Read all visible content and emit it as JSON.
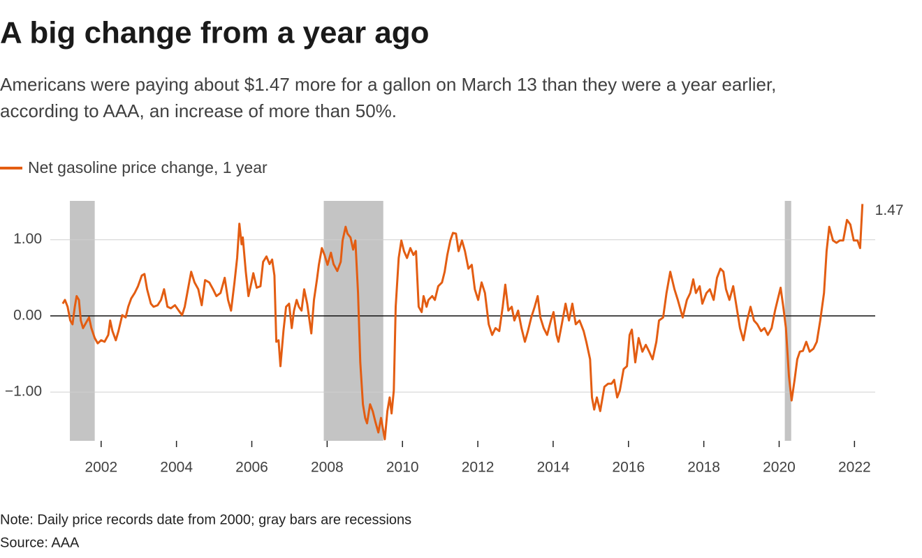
{
  "chart_data": {
    "type": "line",
    "title": "A big change from a year ago",
    "subtitle": [
      "Americans were paying about $1.47 more for a gallon on March 13 than they were a year earlier,",
      "according to AAA, an increase of more than 50%."
    ],
    "note": "Note: Daily price records date from 2000; gray bars are recessions",
    "source": "Source: AAA",
    "xlim": [
      2000.65,
      2022.55
    ],
    "ylim": [
      -1.64,
      1.51
    ],
    "xticks": [
      2002,
      2004,
      2006,
      2008,
      2010,
      2012,
      2014,
      2016,
      2018,
      2020,
      2022
    ],
    "yticks": [
      {
        "value": -1,
        "label": "−1.00"
      },
      {
        "value": 0,
        "label": "0.00"
      },
      {
        "value": 1,
        "label": "1.00"
      }
    ],
    "grid": true,
    "recession_color": "#c4c4c4",
    "recessions": [
      [
        2001.17,
        2001.83
      ],
      [
        2007.91,
        2009.49
      ],
      [
        2020.15,
        2020.32
      ]
    ],
    "series": [
      {
        "name": "Net gasoline price change, 1 year",
        "color": "#e35d12",
        "x": [
          2000.98,
          2001.04,
          2001.11,
          2001.18,
          2001.24,
          2001.3,
          2001.35,
          2001.41,
          2001.46,
          2001.52,
          2001.61,
          2001.68,
          2001.74,
          2001.83,
          2001.91,
          2002.0,
          2002.09,
          2002.19,
          2002.24,
          2002.3,
          2002.39,
          2002.46,
          2002.56,
          2002.65,
          2002.72,
          2002.8,
          2002.89,
          2002.98,
          2003.08,
          2003.15,
          2003.22,
          2003.32,
          2003.39,
          2003.5,
          2003.59,
          2003.67,
          2003.76,
          2003.85,
          2003.96,
          2004.06,
          2004.15,
          2004.22,
          2004.32,
          2004.39,
          2004.48,
          2004.58,
          2004.67,
          2004.76,
          2004.87,
          2004.97,
          2005.06,
          2005.17,
          2005.28,
          2005.37,
          2005.45,
          2005.54,
          2005.61,
          2005.67,
          2005.73,
          2005.76,
          2005.84,
          2005.91,
          2005.99,
          2006.04,
          2006.13,
          2006.23,
          2006.3,
          2006.39,
          2006.47,
          2006.54,
          2006.6,
          2006.65,
          2006.71,
          2006.76,
          2006.84,
          2006.91,
          2006.99,
          2007.06,
          2007.12,
          2007.19,
          2007.25,
          2007.32,
          2007.39,
          2007.47,
          2007.52,
          2007.58,
          2007.65,
          2007.73,
          2007.78,
          2007.86,
          2007.93,
          2008.01,
          2008.1,
          2008.17,
          2008.27,
          2008.36,
          2008.41,
          2008.49,
          2008.54,
          2008.62,
          2008.69,
          2008.75,
          2008.82,
          2008.88,
          2008.95,
          2009.01,
          2009.06,
          2009.14,
          2009.21,
          2009.28,
          2009.36,
          2009.43,
          2009.53,
          2009.6,
          2009.66,
          2009.71,
          2009.77,
          2009.82,
          2009.9,
          2009.97,
          2010.04,
          2010.12,
          2010.21,
          2010.29,
          2010.36,
          2010.43,
          2010.51,
          2010.56,
          2010.64,
          2010.69,
          2010.79,
          2010.86,
          2010.95,
          2011.05,
          2011.12,
          2011.19,
          2011.27,
          2011.34,
          2011.42,
          2011.49,
          2011.58,
          2011.66,
          2011.75,
          2011.84,
          2011.92,
          2012.01,
          2012.1,
          2012.19,
          2012.29,
          2012.38,
          2012.47,
          2012.57,
          2012.66,
          2012.73,
          2012.81,
          2012.9,
          2012.97,
          2013.07,
          2013.16,
          2013.25,
          2013.33,
          2013.42,
          2013.51,
          2013.59,
          2013.66,
          2013.75,
          2013.84,
          2013.94,
          2014.01,
          2014.09,
          2014.14,
          2014.23,
          2014.33,
          2014.42,
          2014.51,
          2014.6,
          2014.7,
          2014.81,
          2014.88,
          2014.98,
          2015.03,
          2015.09,
          2015.16,
          2015.25,
          2015.36,
          2015.46,
          2015.55,
          2015.62,
          2015.7,
          2015.77,
          2015.87,
          2015.96,
          2016.03,
          2016.09,
          2016.18,
          2016.27,
          2016.37,
          2016.46,
          2016.55,
          2016.64,
          2016.74,
          2016.81,
          2016.92,
          2017.01,
          2017.11,
          2017.22,
          2017.31,
          2017.44,
          2017.55,
          2017.64,
          2017.72,
          2017.79,
          2017.89,
          2017.96,
          2018.07,
          2018.16,
          2018.26,
          2018.35,
          2018.44,
          2018.52,
          2018.59,
          2018.68,
          2018.78,
          2018.87,
          2018.96,
          2019.05,
          2019.15,
          2019.24,
          2019.33,
          2019.42,
          2019.52,
          2019.61,
          2019.7,
          2019.8,
          2019.89,
          2019.96,
          2020.04,
          2020.11,
          2020.18,
          2020.26,
          2020.33,
          2020.41,
          2020.48,
          2020.55,
          2020.63,
          2020.72,
          2020.81,
          2020.91,
          2021.0,
          2021.09,
          2021.19,
          2021.26,
          2021.33,
          2021.43,
          2021.52,
          2021.61,
          2021.7,
          2021.8,
          2021.89,
          2021.98,
          2022.08,
          2022.15,
          2022.21
        ],
        "values": [
          0.16,
          0.21,
          0.12,
          -0.06,
          -0.11,
          0.12,
          0.26,
          0.21,
          -0.06,
          -0.16,
          -0.08,
          -0.02,
          -0.16,
          -0.29,
          -0.36,
          -0.32,
          -0.34,
          -0.25,
          -0.06,
          -0.2,
          -0.32,
          -0.2,
          0.01,
          -0.02,
          0.12,
          0.23,
          0.3,
          0.39,
          0.53,
          0.55,
          0.35,
          0.16,
          0.12,
          0.14,
          0.21,
          0.35,
          0.12,
          0.1,
          0.14,
          0.07,
          0.01,
          0.12,
          0.39,
          0.58,
          0.44,
          0.35,
          0.14,
          0.47,
          0.44,
          0.35,
          0.26,
          0.3,
          0.5,
          0.21,
          0.07,
          0.44,
          0.76,
          1.21,
          0.94,
          1.03,
          0.58,
          0.26,
          0.44,
          0.56,
          0.37,
          0.39,
          0.71,
          0.78,
          0.68,
          0.74,
          0.53,
          -0.34,
          -0.32,
          -0.66,
          -0.2,
          0.12,
          0.16,
          -0.16,
          0.07,
          0.21,
          0.12,
          0.07,
          0.35,
          0.16,
          -0.02,
          -0.23,
          0.21,
          0.48,
          0.67,
          0.89,
          0.8,
          0.67,
          0.83,
          0.68,
          0.59,
          0.71,
          0.99,
          1.17,
          1.08,
          1.03,
          0.87,
          0.99,
          0.3,
          -0.61,
          -1.16,
          -1.34,
          -1.41,
          -1.16,
          -1.25,
          -1.39,
          -1.53,
          -1.34,
          -1.62,
          -1.25,
          -1.07,
          -1.28,
          -0.98,
          0.12,
          0.76,
          0.99,
          0.85,
          0.76,
          0.89,
          0.8,
          0.85,
          0.12,
          0.05,
          0.26,
          0.12,
          0.21,
          0.26,
          0.21,
          0.39,
          0.44,
          0.58,
          0.8,
          0.99,
          1.09,
          1.08,
          0.85,
          0.99,
          0.85,
          0.62,
          0.67,
          0.35,
          0.21,
          0.44,
          0.3,
          -0.11,
          -0.25,
          -0.16,
          -0.2,
          0.12,
          0.41,
          0.07,
          0.12,
          -0.06,
          0.07,
          -0.16,
          -0.34,
          -0.2,
          -0.02,
          0.12,
          0.26,
          -0.02,
          -0.16,
          -0.25,
          -0.06,
          0.05,
          -0.25,
          -0.34,
          -0.11,
          0.16,
          -0.06,
          0.16,
          -0.11,
          -0.06,
          -0.2,
          -0.34,
          -0.57,
          -1.07,
          -1.23,
          -1.07,
          -1.25,
          -0.93,
          -0.89,
          -0.89,
          -0.84,
          -1.07,
          -0.98,
          -0.7,
          -0.66,
          -0.25,
          -0.18,
          -0.61,
          -0.29,
          -0.47,
          -0.38,
          -0.47,
          -0.57,
          -0.34,
          -0.06,
          -0.02,
          0.3,
          0.58,
          0.35,
          0.21,
          -0.02,
          0.21,
          0.3,
          0.48,
          0.3,
          0.39,
          0.16,
          0.3,
          0.35,
          0.21,
          0.5,
          0.62,
          0.58,
          0.35,
          0.21,
          0.39,
          0.12,
          -0.16,
          -0.32,
          -0.06,
          0.12,
          -0.06,
          -0.11,
          -0.2,
          -0.16,
          -0.25,
          -0.16,
          0.07,
          0.21,
          0.37,
          0.12,
          -0.16,
          -0.79,
          -1.11,
          -0.84,
          -0.57,
          -0.47,
          -0.46,
          -0.34,
          -0.47,
          -0.43,
          -0.34,
          -0.06,
          0.3,
          0.85,
          1.17,
          0.99,
          0.96,
          0.99,
          0.99,
          1.26,
          1.2,
          0.99,
          0.99,
          0.89,
          1.47
        ]
      }
    ]
  }
}
